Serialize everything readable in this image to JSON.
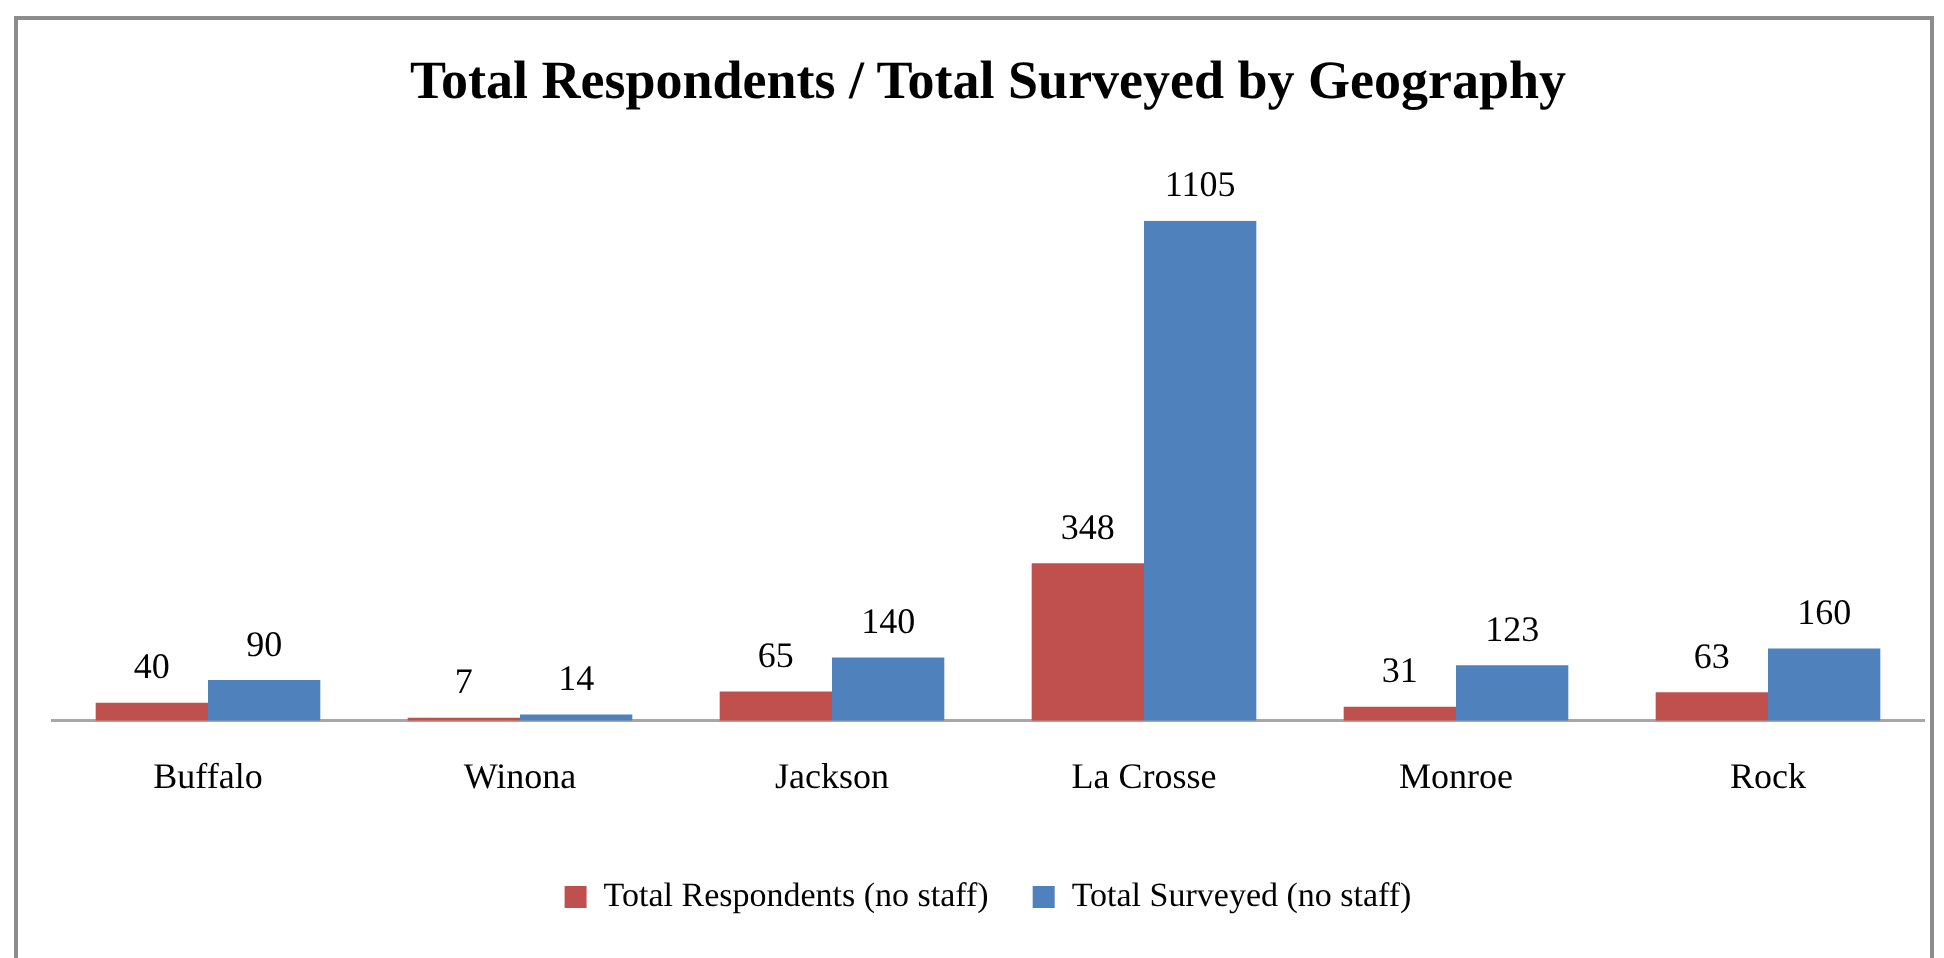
{
  "chart_data": {
    "type": "bar",
    "title": "Total Respondents / Total Surveyed by Geography",
    "categories": [
      "Buffalo",
      "Winona",
      "Jackson",
      "La Crosse",
      "Monroe",
      "Rock"
    ],
    "series": [
      {
        "name": "Total Respondents (no staff)",
        "color": "#c0504d",
        "values": [
          40,
          7,
          65,
          348,
          31,
          63
        ]
      },
      {
        "name": "Total Surveyed (no staff)",
        "color": "#4f81bd",
        "values": [
          90,
          14,
          140,
          1105,
          123,
          160
        ]
      }
    ],
    "data_labels": true,
    "legend": "bottom",
    "grid": false
  }
}
